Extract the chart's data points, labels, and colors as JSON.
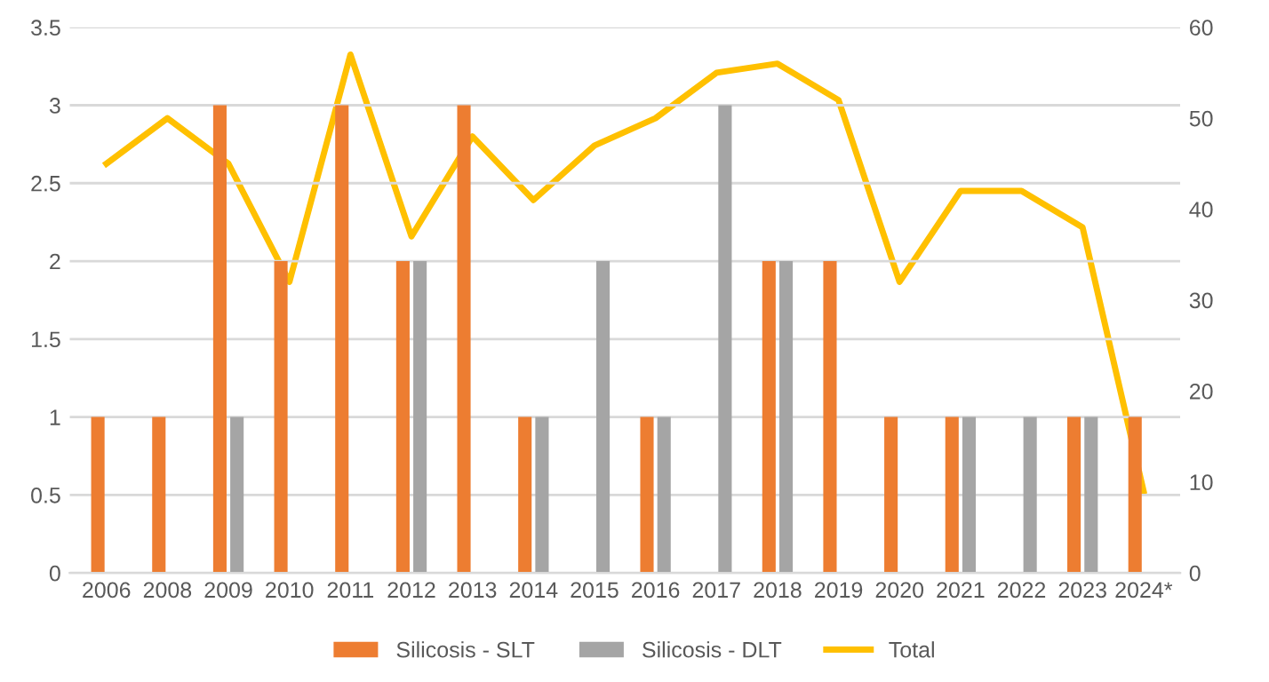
{
  "chart_data": {
    "type": "bar",
    "categories": [
      "2006",
      "2008",
      "2009",
      "2010",
      "2011",
      "2012",
      "2013",
      "2014",
      "2015",
      "2016",
      "2017",
      "2018",
      "2019",
      "2020",
      "2021",
      "2022",
      "2023",
      "2024*"
    ],
    "series": [
      {
        "name": "Silicosis - SLT",
        "color": "#ed7d31",
        "values": [
          1,
          1,
          3,
          2,
          3,
          2,
          3,
          1,
          null,
          1,
          null,
          2,
          2,
          1,
          1,
          null,
          1,
          1
        ]
      },
      {
        "name": "Silicosis - DLT",
        "color": "#a5a5a5",
        "values": [
          null,
          null,
          1,
          null,
          null,
          2,
          null,
          1,
          2,
          1,
          3,
          2,
          null,
          null,
          1,
          1,
          1,
          null
        ]
      },
      {
        "name": "Total",
        "color": "#ffc000",
        "type": "line",
        "axis": "y2",
        "values": [
          45,
          50,
          45,
          32,
          57,
          37,
          48,
          41,
          47,
          50,
          55,
          56,
          52,
          32,
          42,
          42,
          38,
          9
        ]
      }
    ],
    "ylim": [
      0,
      3.5
    ],
    "yticks": [
      0,
      0.5,
      1,
      1.5,
      2,
      2.5,
      3,
      3.5
    ],
    "y2lim": [
      0,
      60
    ],
    "y2ticks": [
      0,
      10,
      20,
      30,
      40,
      50,
      60
    ],
    "grid": "y",
    "legend": "bottom"
  }
}
